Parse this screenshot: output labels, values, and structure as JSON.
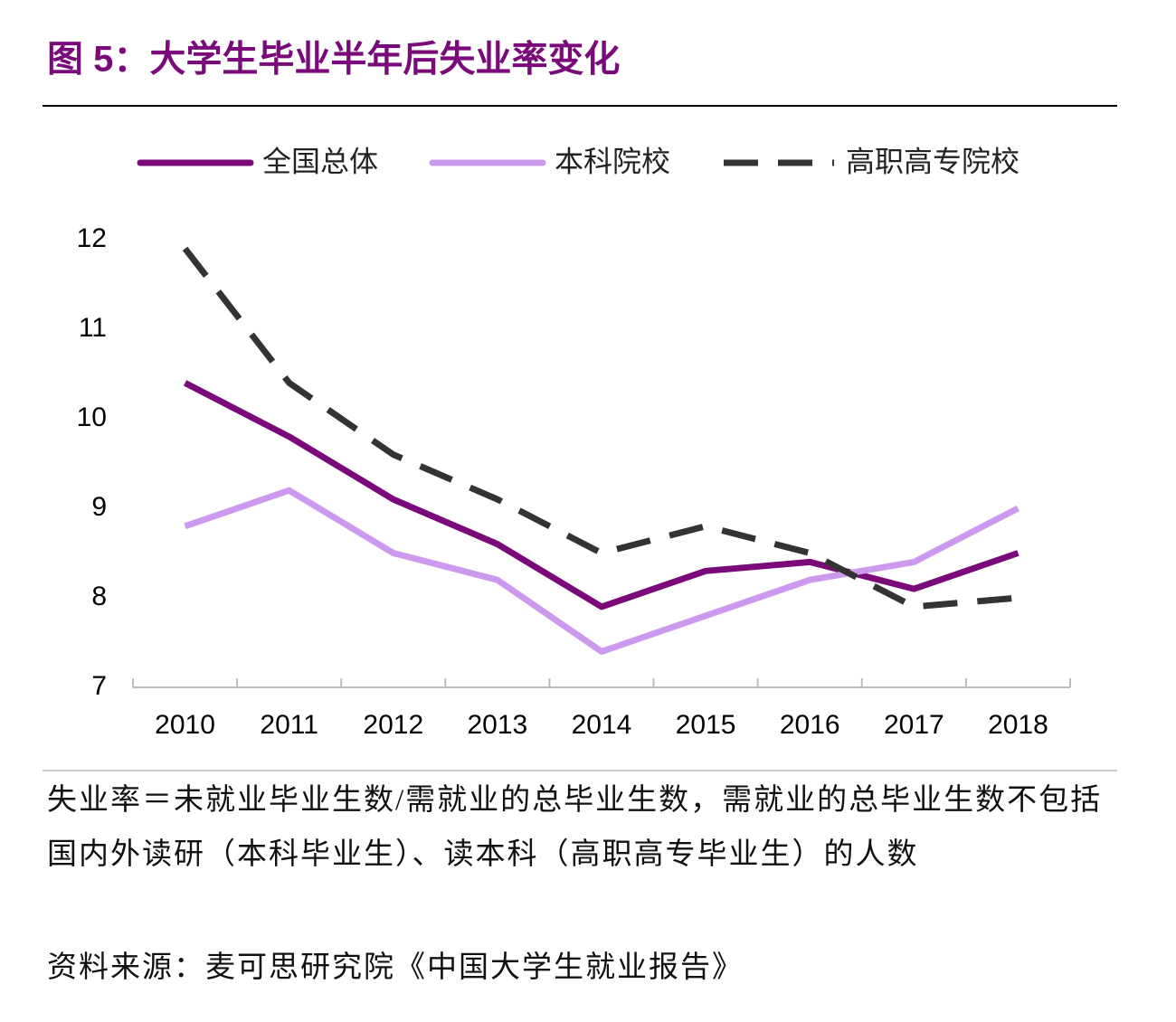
{
  "chart_data": {
    "type": "line",
    "title": "图 5：大学生毕业半年后失业率变化",
    "categories": [
      "2010",
      "2011",
      "2012",
      "2013",
      "2014",
      "2015",
      "2016",
      "2017",
      "2018"
    ],
    "series": [
      {
        "name": "全国总体",
        "color": "#7a0a7a",
        "dash": false,
        "values": [
          10.4,
          9.8,
          9.1,
          8.6,
          7.9,
          8.3,
          8.4,
          8.1,
          8.5
        ]
      },
      {
        "name": "本科院校",
        "color": "#cc99ee",
        "dash": false,
        "values": [
          8.8,
          9.2,
          8.5,
          8.2,
          7.4,
          7.8,
          8.2,
          8.4,
          9.0
        ]
      },
      {
        "name": "高职高专院校",
        "color": "#333333",
        "dash": true,
        "values": [
          11.9,
          10.4,
          9.6,
          9.1,
          8.5,
          8.8,
          8.5,
          7.9,
          8.0
        ]
      }
    ],
    "ylim": [
      7,
      12
    ],
    "yticks": [
      7,
      8,
      9,
      10,
      11,
      12
    ],
    "grid": false,
    "note": "失业率＝未就业毕业生数/需就业的总毕业生数，需就业的总毕业生数不包括国内外读研（本科毕业生）、读本科（高职高专毕业生）的人数",
    "source": "资料来源：麦可思研究院《中国大学生就业报告》"
  }
}
